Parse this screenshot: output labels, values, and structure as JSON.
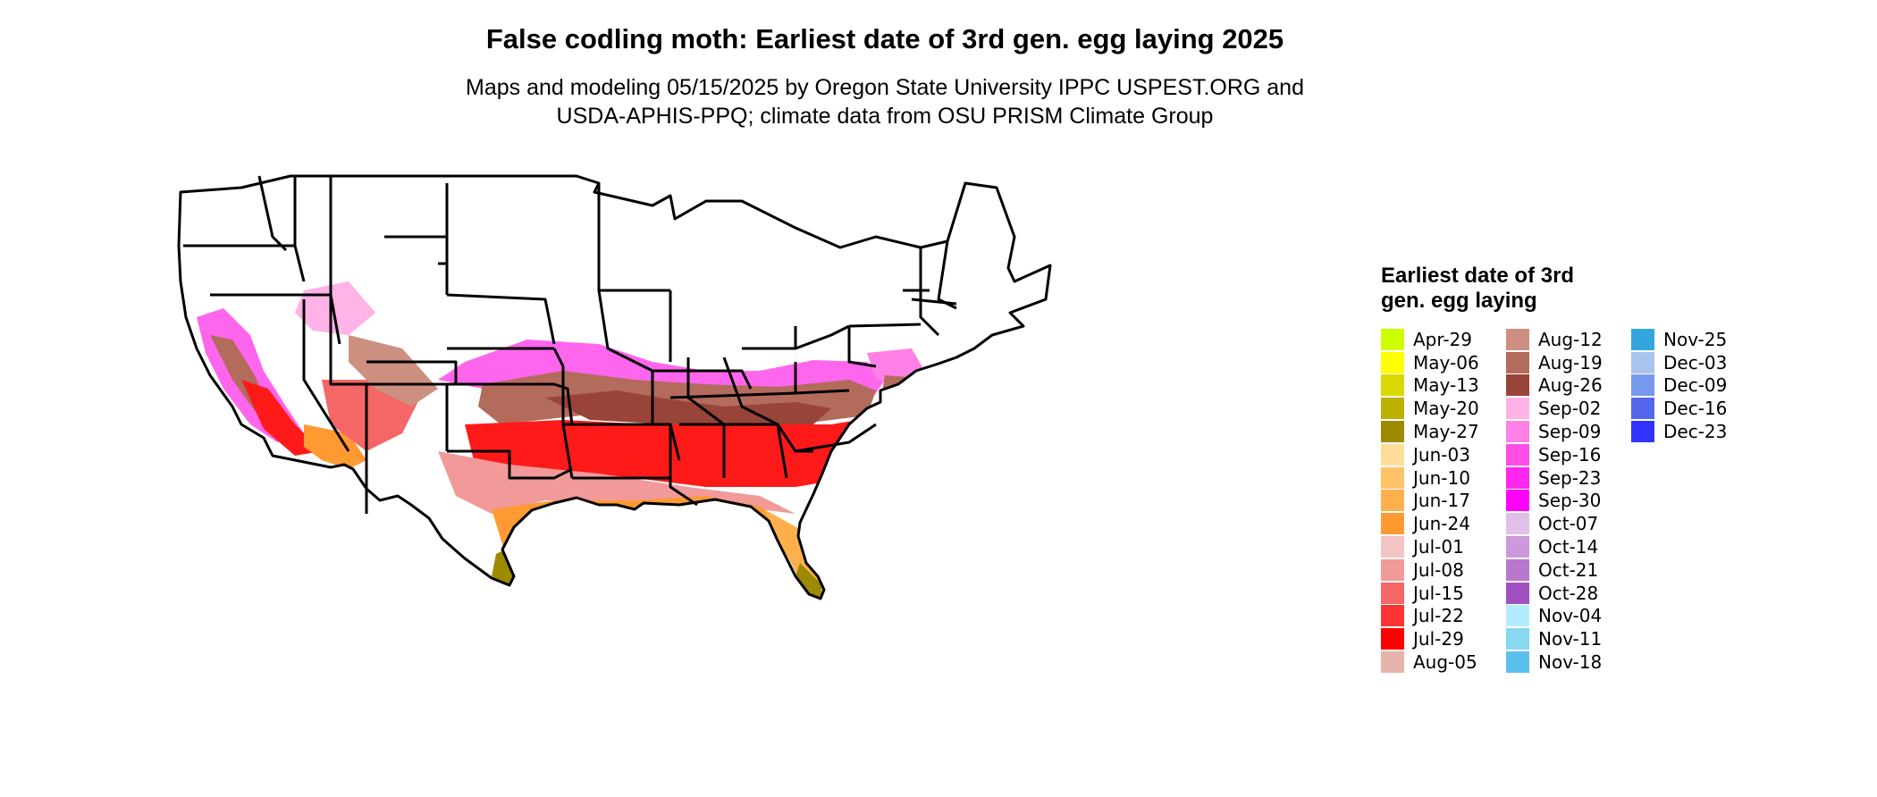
{
  "title": "False codling moth: Earliest date of 3rd gen. egg laying 2025",
  "subtitle_line1": "Maps and modeling 05/15/2025 by Oregon State University IPPC USPEST.ORG and",
  "subtitle_line2": "USDA-APHIS-PPQ; climate data from OSU PRISM Climate Group",
  "legend": {
    "title": "Earliest date of 3rd gen. egg laying",
    "columns": [
      [
        {
          "label": "Apr-29",
          "color": "#ccff00"
        },
        {
          "label": "May-06",
          "color": "#ffff00"
        },
        {
          "label": "May-13",
          "color": "#d9d900"
        },
        {
          "label": "May-20",
          "color": "#bcb000"
        },
        {
          "label": "May-27",
          "color": "#9e8a00"
        },
        {
          "label": "Jun-03",
          "color": "#ffdd99"
        },
        {
          "label": "Jun-10",
          "color": "#ffc266"
        },
        {
          "label": "Jun-17",
          "color": "#ffb04d"
        },
        {
          "label": "Jun-24",
          "color": "#ff9a33"
        },
        {
          "label": "Jul-01",
          "color": "#f5c4c4"
        },
        {
          "label": "Jul-08",
          "color": "#f29a9a"
        },
        {
          "label": "Jul-15",
          "color": "#f56666"
        },
        {
          "label": "Jul-22",
          "color": "#ff3333"
        },
        {
          "label": "Jul-29",
          "color": "#ff0000"
        },
        {
          "label": "Aug-05",
          "color": "#e6b3aa"
        }
      ],
      [
        {
          "label": "Aug-12",
          "color": "#cc8f80"
        },
        {
          "label": "Aug-19",
          "color": "#b36b5c"
        },
        {
          "label": "Aug-26",
          "color": "#994438"
        },
        {
          "label": "Sep-02",
          "color": "#ffb3e6"
        },
        {
          "label": "Sep-09",
          "color": "#ff80e6"
        },
        {
          "label": "Sep-16",
          "color": "#ff4de6"
        },
        {
          "label": "Sep-23",
          "color": "#ff26ee"
        },
        {
          "label": "Sep-30",
          "color": "#ff00ff"
        },
        {
          "label": "Oct-07",
          "color": "#e0c0e8"
        },
        {
          "label": "Oct-14",
          "color": "#cc99dd"
        },
        {
          "label": "Oct-21",
          "color": "#b877cc"
        },
        {
          "label": "Oct-28",
          "color": "#a050c0"
        },
        {
          "label": "Nov-04",
          "color": "#b3ecff"
        },
        {
          "label": "Nov-11",
          "color": "#88d8f0"
        },
        {
          "label": "Nov-18",
          "color": "#5cc0ee"
        }
      ],
      [
        {
          "label": "Nov-25",
          "color": "#33a6dd"
        },
        {
          "label": "Dec-03",
          "color": "#a8c4ee"
        },
        {
          "label": "Dec-09",
          "color": "#7799ee"
        },
        {
          "label": "Dec-16",
          "color": "#5566ee"
        },
        {
          "label": "Dec-23",
          "color": "#3333ff"
        }
      ]
    ]
  }
}
